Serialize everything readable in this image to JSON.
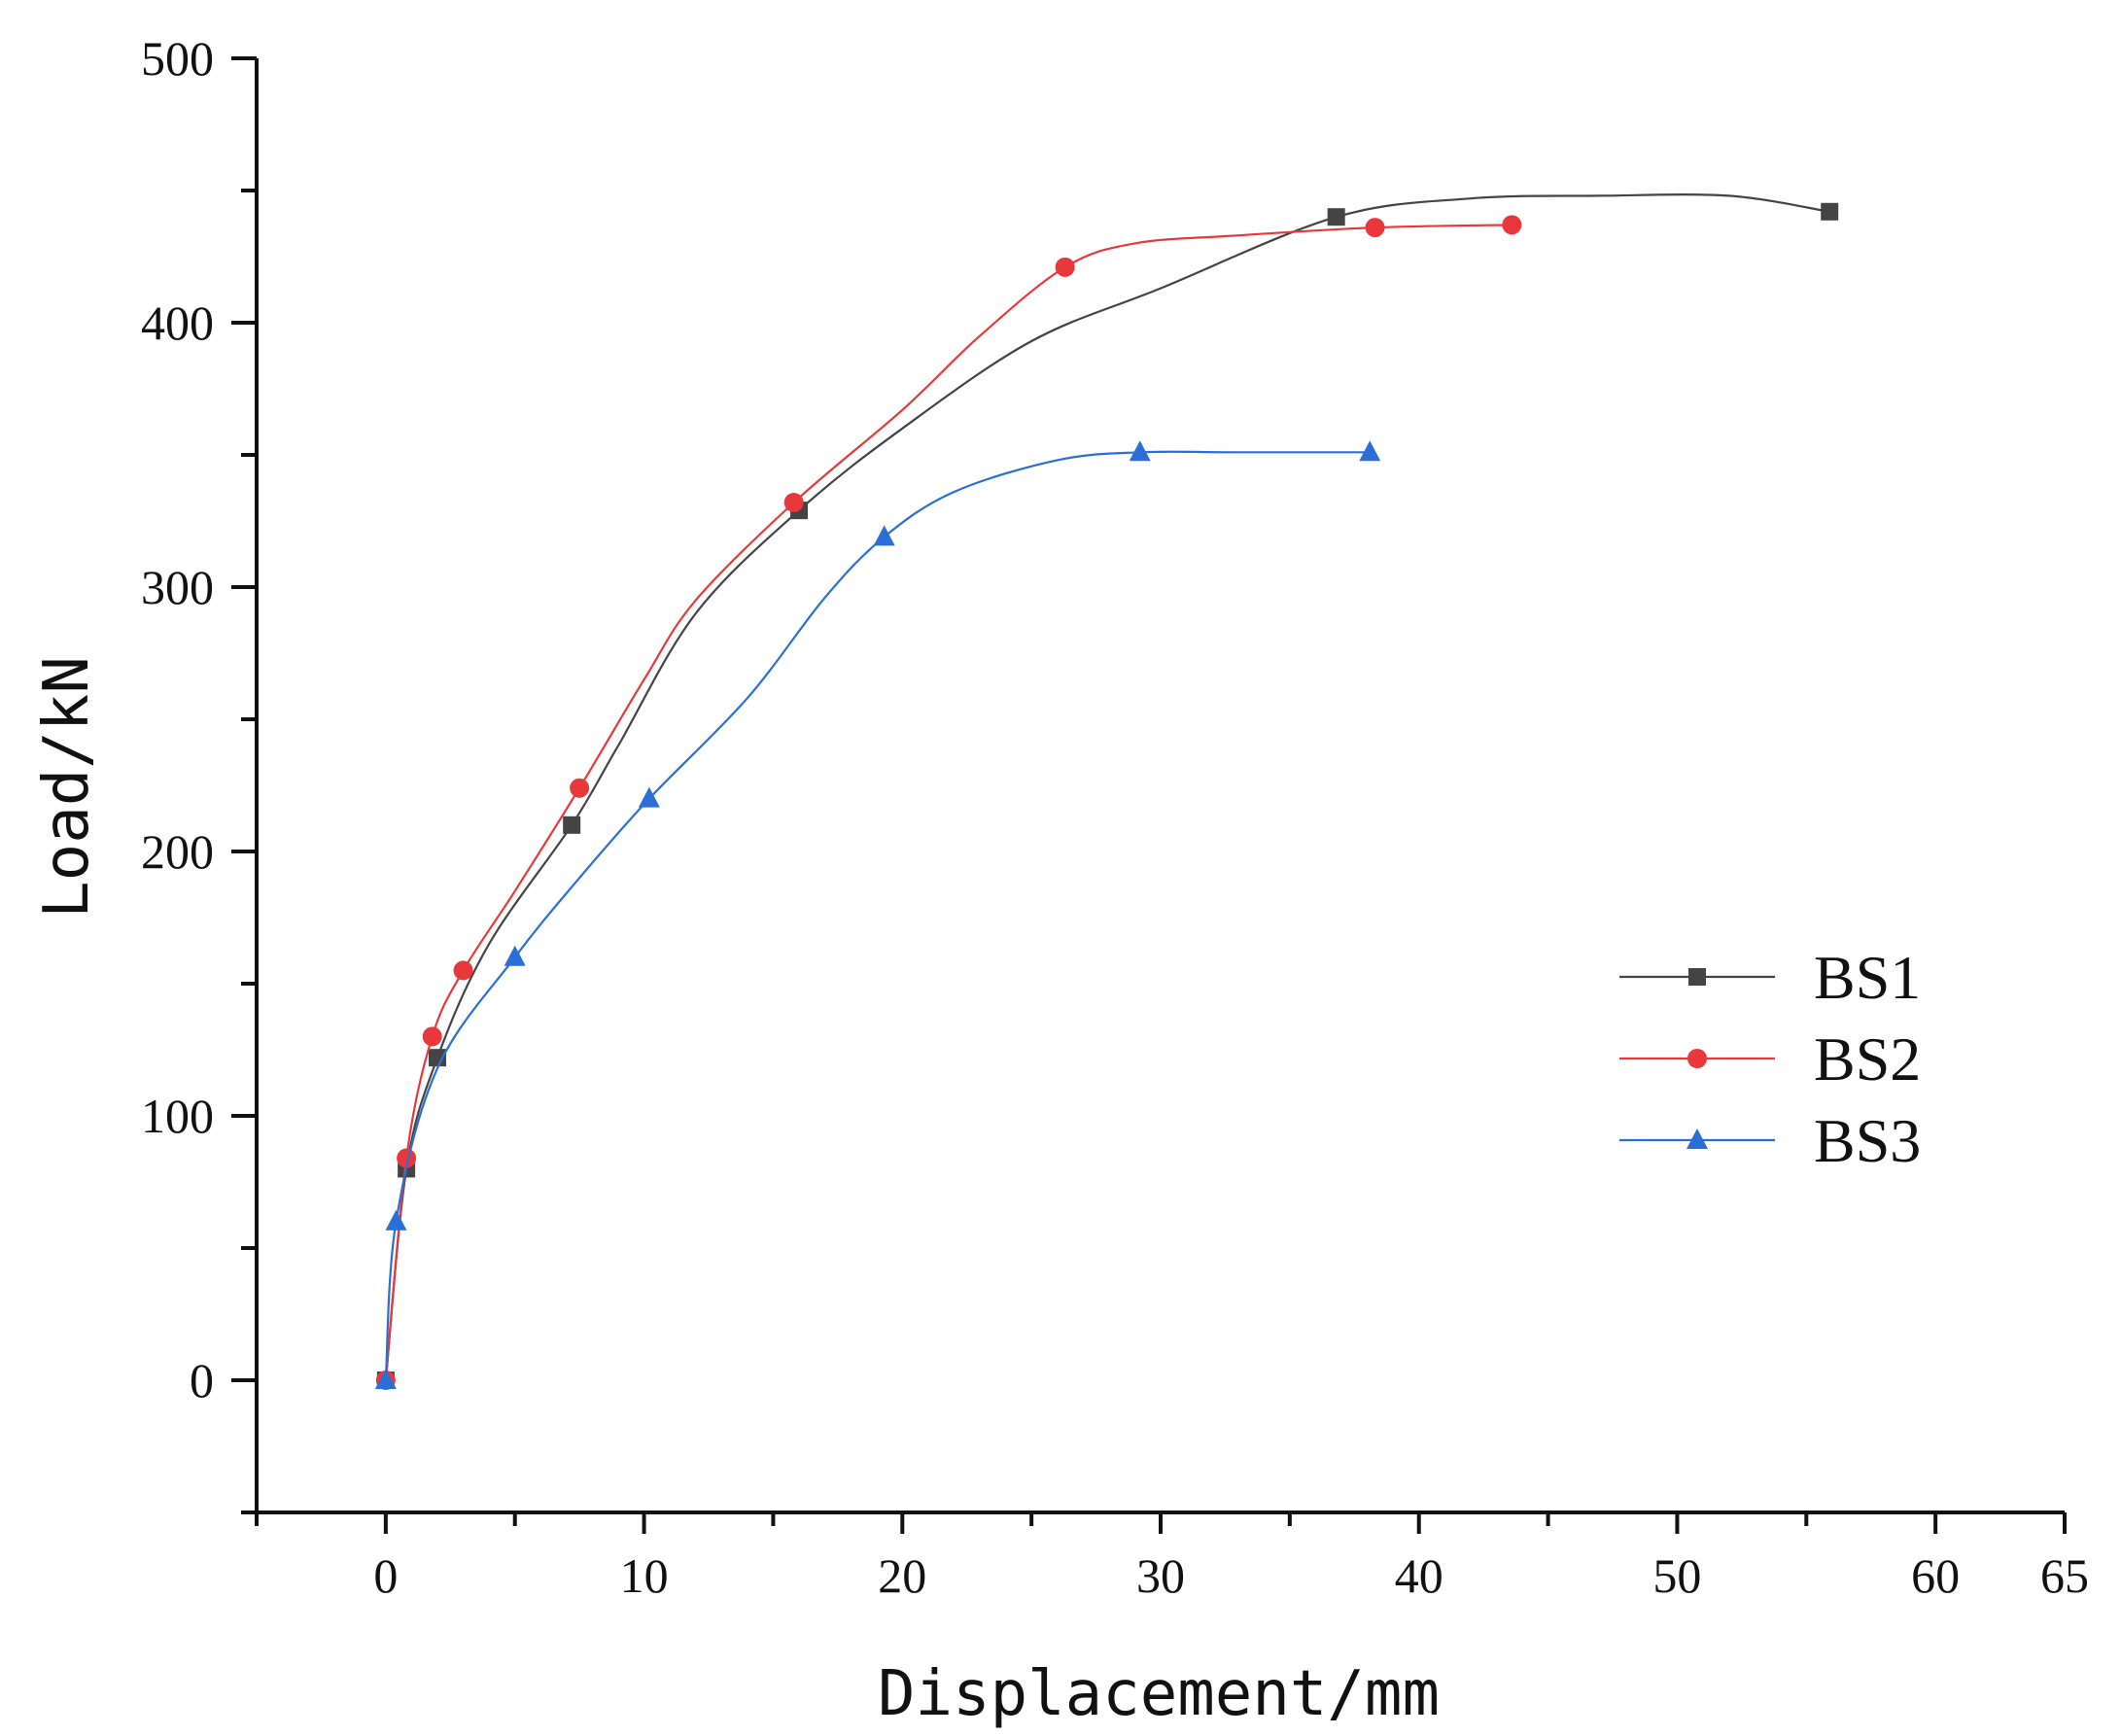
{
  "chart_data": {
    "type": "line",
    "xlabel": "Displacement/mm",
    "ylabel": "Load/kN",
    "xlim": [
      -5,
      65
    ],
    "ylim": [
      -50,
      500
    ],
    "xticks": [
      0,
      10,
      20,
      30,
      40,
      50,
      60,
      65
    ],
    "yticks": [
      0,
      100,
      200,
      300,
      400,
      500
    ],
    "grid": false,
    "legend_position": "right",
    "series": [
      {
        "name": "BS1",
        "color": "#444444",
        "marker": "square",
        "x": [
          0,
          0.8,
          2.0,
          7.2,
          16.0,
          36.8,
          55.9
        ],
        "y": [
          0,
          80,
          122,
          210,
          329,
          440,
          442
        ],
        "curve_x": [
          0,
          0.8,
          2.0,
          4.0,
          7.2,
          9.0,
          12.0,
          16.0,
          20.0,
          25.0,
          30.0,
          36.8,
          42.0,
          47.0,
          52.0,
          55.9
        ],
        "curve_y": [
          0,
          80,
          122,
          165,
          210,
          240,
          290,
          329,
          360,
          393,
          413,
          440,
          447,
          448,
          448,
          442
        ]
      },
      {
        "name": "BS2",
        "color": "#e8383c",
        "marker": "circle",
        "x": [
          0,
          0.8,
          1.8,
          3.0,
          7.5,
          15.8,
          26.3,
          38.3,
          43.6
        ],
        "y": [
          0,
          84,
          130,
          155,
          224,
          332,
          421,
          436,
          437
        ],
        "curve_x": [
          0,
          0.8,
          1.8,
          3.0,
          5.0,
          7.5,
          10.0,
          12.0,
          15.8,
          20.0,
          23.0,
          26.3,
          29.0,
          33.0,
          38.3,
          43.6
        ],
        "curve_y": [
          0,
          84,
          130,
          155,
          185,
          224,
          265,
          295,
          332,
          367,
          395,
          421,
          430,
          433,
          436,
          437
        ]
      },
      {
        "name": "BS3",
        "color": "#2b6fd6",
        "marker": "triangle",
        "x": [
          0,
          0.4,
          5.0,
          10.2,
          19.3,
          29.2,
          38.1
        ],
        "y": [
          0,
          60,
          160,
          220,
          319,
          351,
          351
        ],
        "curve_x": [
          0,
          0.4,
          2.0,
          5.0,
          7.5,
          10.2,
          14.0,
          17.0,
          19.3,
          22.0,
          26.0,
          29.2,
          33.0,
          38.1
        ],
        "curve_y": [
          0,
          60,
          118,
          160,
          190,
          220,
          258,
          296,
          319,
          336,
          348,
          351,
          351,
          351
        ]
      }
    ]
  }
}
